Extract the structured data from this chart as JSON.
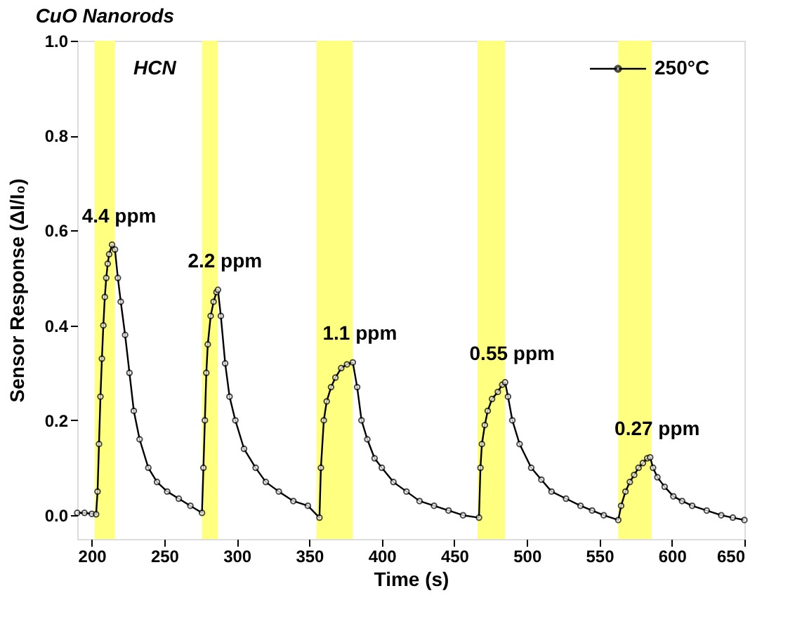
{
  "chart_data": {
    "type": "line",
    "title": "CuO Nanorods",
    "xlabel": "Time (s)",
    "ylabel": "Sensor Response (ΔI/I₀)",
    "xlim": [
      190,
      650
    ],
    "xticks": [
      200,
      250,
      300,
      350,
      400,
      450,
      500,
      550,
      600,
      650
    ],
    "ylim": [
      -0.05,
      1.0
    ],
    "yticks": [
      {
        "value": 0,
        "label": "0.0"
      },
      0.2,
      0.4,
      0.6,
      0.8,
      {
        "value": 1,
        "label": "1.0"
      }
    ],
    "grid": false,
    "legend": "top right",
    "marker": "circle",
    "line_style": "solid",
    "series": [
      {
        "name": "250°C",
        "color": "#000000",
        "x": [
          190,
          195,
          200,
          203,
          204,
          205,
          206,
          207,
          208,
          209,
          210,
          211,
          212,
          214,
          216,
          218,
          220,
          223,
          226,
          229,
          233,
          239,
          245,
          252,
          260,
          268,
          276,
          277,
          278,
          279,
          280,
          282,
          284,
          286,
          287,
          289,
          292,
          295,
          299,
          305,
          313,
          320,
          329,
          339,
          349,
          357,
          358,
          360,
          362,
          365,
          368,
          372,
          376,
          380,
          383,
          386,
          390,
          395,
          400,
          408,
          417,
          426,
          436,
          446,
          456,
          467,
          468,
          469,
          471,
          473,
          476,
          480,
          483,
          485,
          487,
          490,
          495,
          503,
          510,
          517,
          527,
          537,
          545,
          553,
          563,
          565,
          568,
          571,
          574,
          577,
          580,
          583,
          585,
          587,
          590,
          595,
          601,
          607,
          614,
          624,
          634,
          642,
          650
        ],
        "values": [
          0.005,
          0.005,
          0.003,
          0.002,
          0.05,
          0.15,
          0.25,
          0.33,
          0.4,
          0.46,
          0.5,
          0.53,
          0.55,
          0.57,
          0.56,
          0.5,
          0.45,
          0.38,
          0.3,
          0.22,
          0.16,
          0.1,
          0.07,
          0.05,
          0.035,
          0.02,
          0.005,
          0.1,
          0.2,
          0.3,
          0.36,
          0.42,
          0.45,
          0.47,
          0.475,
          0.42,
          0.32,
          0.25,
          0.2,
          0.14,
          0.1,
          0.07,
          0.05,
          0.03,
          0.02,
          -0.005,
          0.1,
          0.2,
          0.24,
          0.27,
          0.29,
          0.31,
          0.318,
          0.322,
          0.27,
          0.2,
          0.16,
          0.12,
          0.1,
          0.07,
          0.05,
          0.03,
          0.02,
          0.01,
          0.0,
          -0.005,
          0.1,
          0.15,
          0.19,
          0.22,
          0.245,
          0.26,
          0.275,
          0.28,
          0.25,
          0.2,
          0.15,
          0.1,
          0.075,
          0.05,
          0.035,
          0.02,
          0.01,
          0.0,
          -0.01,
          0.02,
          0.05,
          0.07,
          0.085,
          0.1,
          0.11,
          0.12,
          0.122,
          0.1,
          0.08,
          0.06,
          0.04,
          0.03,
          0.02,
          0.01,
          0.0,
          -0.005,
          -0.01
        ]
      }
    ],
    "bands": [
      {
        "axis": "x",
        "from": 202,
        "to": 216,
        "color": "#ffff80"
      },
      {
        "axis": "x",
        "from": 276,
        "to": 287,
        "color": "#ffff80"
      },
      {
        "axis": "x",
        "from": 355,
        "to": 380,
        "color": "#ffff80"
      },
      {
        "axis": "x",
        "from": 466,
        "to": 485,
        "color": "#ffff80"
      },
      {
        "axis": "x",
        "from": 563,
        "to": 586,
        "color": "#ffff80"
      }
    ],
    "annotations": [
      "HCN",
      {
        "text": "4.4 ppm",
        "x": 214,
        "y": 0.57
      },
      {
        "text": "2.2 ppm",
        "x": 287,
        "y": 0.475
      },
      {
        "text": "1.1 ppm",
        "x": 380,
        "y": 0.322
      },
      {
        "text": "0.55 ppm",
        "x": 485,
        "y": 0.28
      },
      {
        "text": "0.27 ppm",
        "x": 585,
        "y": 0.122
      }
    ]
  }
}
